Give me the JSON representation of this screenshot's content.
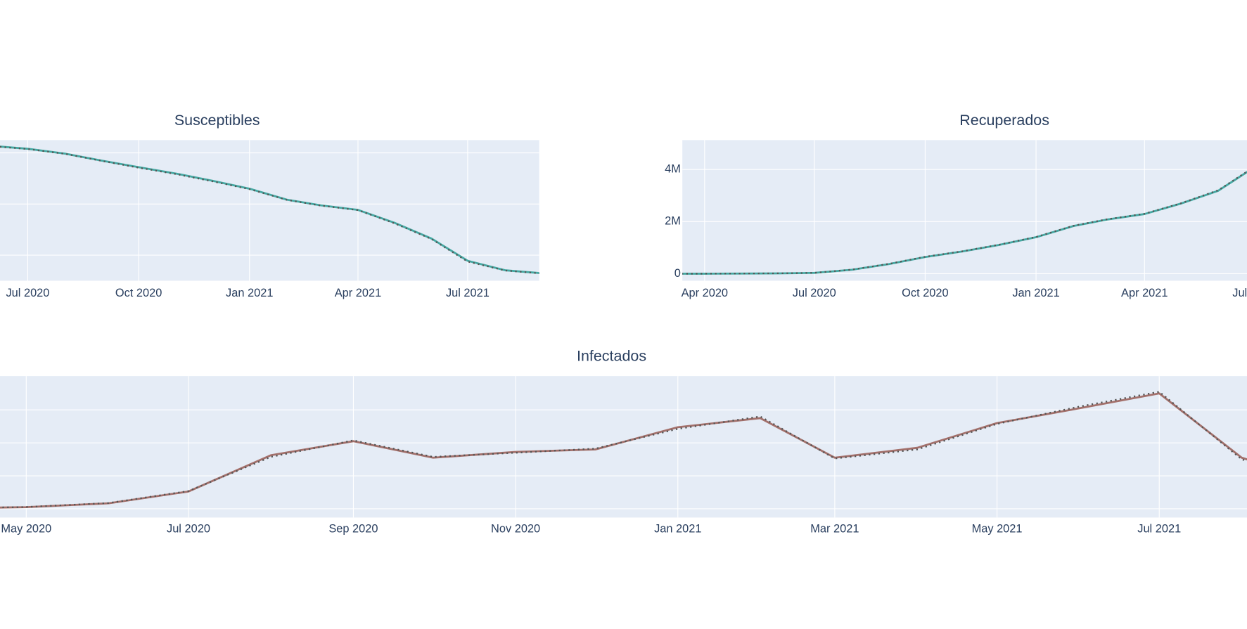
{
  "chart_data": [
    {
      "type": "line",
      "title": "Susceptibles",
      "x": [
        "2020-03",
        "2020-04",
        "2020-05",
        "2020-06",
        "2020-07",
        "2020-08",
        "2020-09",
        "2020-10",
        "2020-11",
        "2020-12",
        "2021-01",
        "2021-02",
        "2021-03",
        "2021-04",
        "2021-05",
        "2021-06",
        "2021-07",
        "2021-08",
        "2021-09"
      ],
      "series": [
        {
          "color": "#45a9a3",
          "style": "solid",
          "values": [
            46450000,
            46440000,
            46400000,
            46270000,
            46160000,
            45970000,
            45690000,
            45440000,
            45190000,
            44910000,
            44600000,
            44170000,
            43950000,
            43770000,
            43270000,
            42650000,
            41780000,
            41410000,
            41290000
          ]
        },
        {
          "color": "#555555",
          "style": "dotted",
          "values": [
            46450000,
            46430000,
            46390000,
            46260000,
            46150000,
            45960000,
            45680000,
            45420000,
            45170000,
            44890000,
            44580000,
            44160000,
            43940000,
            43760000,
            43250000,
            42630000,
            41750000,
            41400000,
            41280000
          ]
        }
      ],
      "xlim": [
        "2020-03",
        "2021-09"
      ],
      "ylim": [
        41000000,
        46500000
      ],
      "xticks": [
        {
          "value": "2020-07",
          "label": "Jul 2020"
        },
        {
          "value": "2020-10",
          "label": "Oct 2020"
        },
        {
          "value": "2021-01",
          "label": "Jan 2021"
        },
        {
          "value": "2021-04",
          "label": "Apr 2021"
        },
        {
          "value": "2021-07",
          "label": "Jul 2021"
        }
      ],
      "yticks": [
        42000000,
        44000000,
        46000000
      ],
      "grid": true
    },
    {
      "type": "line",
      "title": "Recuperados",
      "x": [
        "2020-03",
        "2020-04",
        "2020-05",
        "2020-06",
        "2020-07",
        "2020-08",
        "2020-09",
        "2020-10",
        "2020-11",
        "2020-12",
        "2021-01",
        "2021-02",
        "2021-03",
        "2021-04",
        "2021-05",
        "2021-06",
        "2021-07",
        "2021-08",
        "2021-09"
      ],
      "series": [
        {
          "color": "#45a9a3",
          "style": "solid",
          "values": [
            0,
            0,
            5000,
            12000,
            30000,
            150000,
            370000,
            640000,
            855000,
            1100000,
            1400000,
            1830000,
            2080000,
            2290000,
            2690000,
            3180000,
            4080000,
            4600000,
            4750000
          ]
        },
        {
          "color": "#555555",
          "style": "dotted",
          "values": [
            0,
            0,
            6000,
            14000,
            33000,
            155000,
            378000,
            650000,
            862000,
            1110000,
            1410000,
            1840000,
            2090000,
            2300000,
            2700000,
            3200000,
            4100000,
            4610000,
            4760000
          ]
        }
      ],
      "xlim": [
        "2020-03",
        "2021-09"
      ],
      "ylim": [
        -270000,
        5130000
      ],
      "xticks": [
        {
          "value": "2020-04",
          "label": "Apr 2020"
        },
        {
          "value": "2020-07",
          "label": "Jul 2020"
        },
        {
          "value": "2020-10",
          "label": "Oct 2020"
        },
        {
          "value": "2021-01",
          "label": "Jan 2021"
        },
        {
          "value": "2021-04",
          "label": "Apr 2021"
        },
        {
          "value": "2021-07",
          "label": "Jul 2021"
        }
      ],
      "yticks": [
        0,
        {
          "value": 2000000,
          "label": "2M"
        },
        {
          "value": 4000000,
          "label": "4M"
        }
      ],
      "grid": true
    },
    {
      "type": "line",
      "title": "Infectados",
      "x": [
        "2020-03",
        "2020-04",
        "2020-05",
        "2020-06",
        "2020-07",
        "2020-08",
        "2020-09",
        "2020-10",
        "2020-11",
        "2020-12",
        "2021-01",
        "2021-02",
        "2021-03",
        "2021-04",
        "2021-05",
        "2021-06",
        "2021-07",
        "2021-08",
        "2021-09"
      ],
      "series": [
        {
          "color": "#a3706b",
          "style": "solid",
          "values": [
            0,
            500,
            2000,
            6700,
            21000,
            65000,
            82000,
            62000,
            69000,
            72000,
            99000,
            110000,
            62000,
            74000,
            104000,
            122000,
            140000,
            62000,
            30000
          ]
        },
        {
          "color": "#555555",
          "style": "dotted",
          "values": [
            0,
            600,
            2200,
            7000,
            21500,
            63000,
            83000,
            63000,
            68000,
            73000,
            97000,
            112000,
            61000,
            72000,
            103000,
            124000,
            142000,
            60000,
            29000
          ]
        }
      ],
      "xlim": [
        "2020-03",
        "2021-09"
      ],
      "ylim": [
        -10600,
        161000
      ],
      "xticks": [
        {
          "value": "2020-05",
          "label": "May 2020"
        },
        {
          "value": "2020-07",
          "label": "Jul 2020"
        },
        {
          "value": "2020-09",
          "label": "Sep 2020"
        },
        {
          "value": "2020-11",
          "label": "Nov 2020"
        },
        {
          "value": "2021-01",
          "label": "Jan 2021"
        },
        {
          "value": "2021-03",
          "label": "Mar 2021"
        },
        {
          "value": "2021-05",
          "label": "May 2021"
        },
        {
          "value": "2021-07",
          "label": "Jul 2021"
        }
      ],
      "yticks": [
        0,
        40000,
        80000,
        120000
      ],
      "grid": true
    }
  ]
}
